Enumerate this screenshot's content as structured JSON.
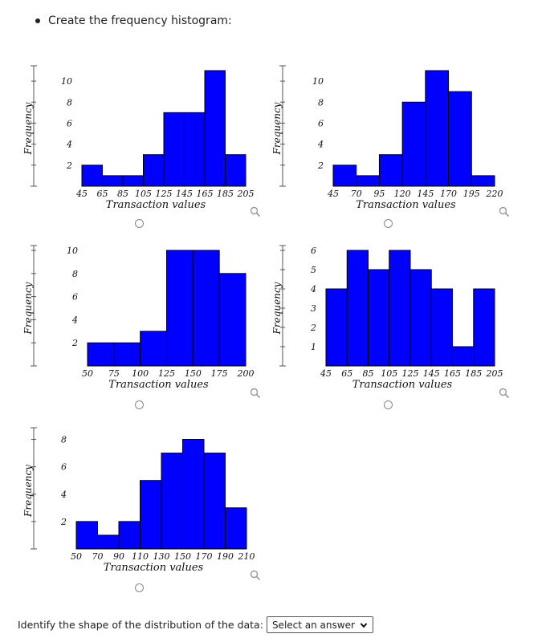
{
  "instruction": "Create the frequency histogram:",
  "question": {
    "label": "Identify the shape of the distribution of the data:",
    "select_placeholder": "Select an answer"
  },
  "chart_data": [
    {
      "type": "bar",
      "ylabel": "Frequency",
      "xlabel": "Transaction values",
      "x_ticks": [
        "45",
        "65",
        "85",
        "105",
        "125",
        "145",
        "165",
        "185",
        "205"
      ],
      "values": [
        2,
        1,
        1,
        3,
        7,
        7,
        11,
        3
      ],
      "y_ticks": [
        "2",
        "4",
        "6",
        "8",
        "10"
      ],
      "ylim": [
        0,
        11
      ]
    },
    {
      "type": "bar",
      "ylabel": "Frequency",
      "xlabel": "Transaction values",
      "x_ticks": [
        "45",
        "70",
        "95",
        "120",
        "145",
        "170",
        "195",
        "220"
      ],
      "values": [
        2,
        1,
        3,
        8,
        11,
        9,
        1
      ],
      "y_ticks": [
        "2",
        "4",
        "6",
        "8",
        "10"
      ],
      "ylim": [
        0,
        11
      ]
    },
    {
      "type": "bar",
      "ylabel": "Frequency",
      "xlabel": "Transaction values",
      "x_ticks": [
        "50",
        "75",
        "100",
        "125",
        "150",
        "175",
        "200"
      ],
      "values": [
        2,
        2,
        3,
        10,
        10,
        8
      ],
      "y_ticks": [
        "2",
        "4",
        "6",
        "8",
        "10"
      ],
      "ylim": [
        0,
        10
      ]
    },
    {
      "type": "bar",
      "ylabel": "Frequency",
      "xlabel": "Transaction values",
      "x_ticks": [
        "45",
        "65",
        "85",
        "105",
        "125",
        "145",
        "165",
        "185",
        "205"
      ],
      "values": [
        4,
        6,
        5,
        6,
        5,
        4,
        1,
        4
      ],
      "y_ticks": [
        "1",
        "2",
        "3",
        "4",
        "5",
        "6"
      ],
      "ylim": [
        0,
        6
      ]
    },
    {
      "type": "bar",
      "ylabel": "Frequency",
      "xlabel": "Transaction values",
      "x_ticks": [
        "50",
        "70",
        "90",
        "110",
        "130",
        "150",
        "170",
        "190",
        "210"
      ],
      "values": [
        2,
        1,
        2,
        5,
        7,
        8,
        7,
        3
      ],
      "y_ticks": [
        "2",
        "4",
        "6",
        "8"
      ],
      "ylim": [
        0,
        8.5
      ]
    }
  ],
  "colors": {
    "bar_fill": "#0000ff",
    "bar_stroke": "#000000",
    "axis": "#555555"
  }
}
